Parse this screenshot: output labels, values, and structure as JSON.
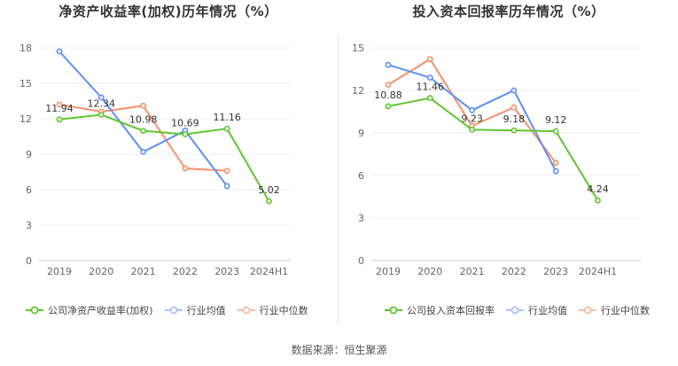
{
  "source_text": "数据来源：恒生聚源",
  "colors": {
    "company": "#5ec52f",
    "industry_avg": "#5b8ff9",
    "industry_median": "#f6906b"
  },
  "chart_data": [
    {
      "type": "line",
      "title": "净资产收益率(加权)历年情况（%）",
      "categories": [
        "2019",
        "2020",
        "2021",
        "2022",
        "2023",
        "2024H1"
      ],
      "ylim": [
        0,
        18
      ],
      "yticks": [
        "0",
        "3",
        "6",
        "9",
        "12",
        "15",
        "18"
      ],
      "grid": true,
      "legend_position": "bottom",
      "series": [
        {
          "name": "公司净资产收益率(加权)",
          "color": "#5ec52f",
          "values": [
            11.94,
            12.34,
            10.98,
            10.69,
            11.16,
            5.02
          ],
          "labels": [
            "11.94",
            "12.34",
            "10.98",
            "10.69",
            "11.16",
            "5.02"
          ]
        },
        {
          "name": "行业均值",
          "color": "#5b8ff9",
          "values": [
            17.7,
            13.8,
            9.2,
            11.0,
            6.3,
            null
          ]
        },
        {
          "name": "行业中位数",
          "color": "#f6906b",
          "values": [
            13.2,
            12.6,
            13.1,
            7.8,
            7.6,
            null
          ]
        }
      ]
    },
    {
      "type": "line",
      "title": "投入资本回报率历年情况（%）",
      "categories": [
        "2019",
        "2020",
        "2021",
        "2022",
        "2023",
        "2024H1"
      ],
      "ylim": [
        0,
        15
      ],
      "yticks": [
        "0",
        "3",
        "6",
        "9",
        "12",
        "15"
      ],
      "grid": true,
      "legend_position": "bottom",
      "series": [
        {
          "name": "公司投入资本回报率",
          "color": "#5ec52f",
          "values": [
            10.88,
            11.46,
            9.23,
            9.18,
            9.12,
            4.24
          ],
          "labels": [
            "10.88",
            "11.46",
            "9.23",
            "9.18",
            "9.12",
            "4.24"
          ]
        },
        {
          "name": "行业均值",
          "color": "#5b8ff9",
          "values": [
            13.8,
            12.9,
            10.6,
            12.0,
            6.3,
            null
          ]
        },
        {
          "name": "行业中位数",
          "color": "#f6906b",
          "values": [
            12.4,
            14.2,
            9.5,
            10.8,
            6.9,
            null
          ]
        }
      ]
    }
  ]
}
